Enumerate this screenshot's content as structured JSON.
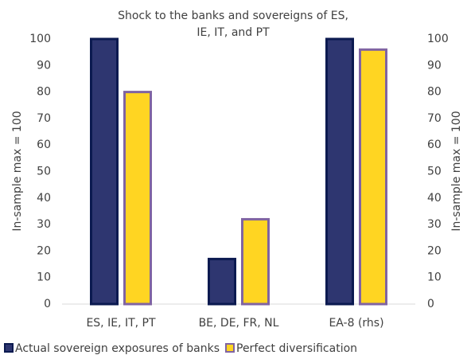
{
  "chart_data": {
    "type": "bar",
    "title": "Shock to the banks and sovereigns of ES, IE, IT, and PT",
    "ylabel": "In-sample max = 100",
    "y2label": "In-sample max = 100",
    "categories": [
      "ES, IE, IT, PT",
      "BE, DE, FR, NL",
      "EA-8 (rhs)"
    ],
    "series": [
      {
        "name": "Actual sovereign exposures of banks",
        "color": "#2e3670",
        "edge": "#0b1a50",
        "values": [
          100,
          17,
          100
        ]
      },
      {
        "name": "Perfect diversification",
        "color": "#ffd522",
        "edge": "#8064a2",
        "values": [
          80,
          32,
          96
        ]
      }
    ],
    "ylim": [
      0,
      100
    ],
    "yticks": [
      0,
      10,
      20,
      30,
      40,
      50,
      60,
      70,
      80,
      90,
      100
    ],
    "y2lim": [
      0,
      100
    ],
    "y2ticks": [
      0,
      10,
      20,
      30,
      40,
      50,
      60,
      70,
      80,
      90,
      100
    ],
    "legend": "bottom"
  }
}
